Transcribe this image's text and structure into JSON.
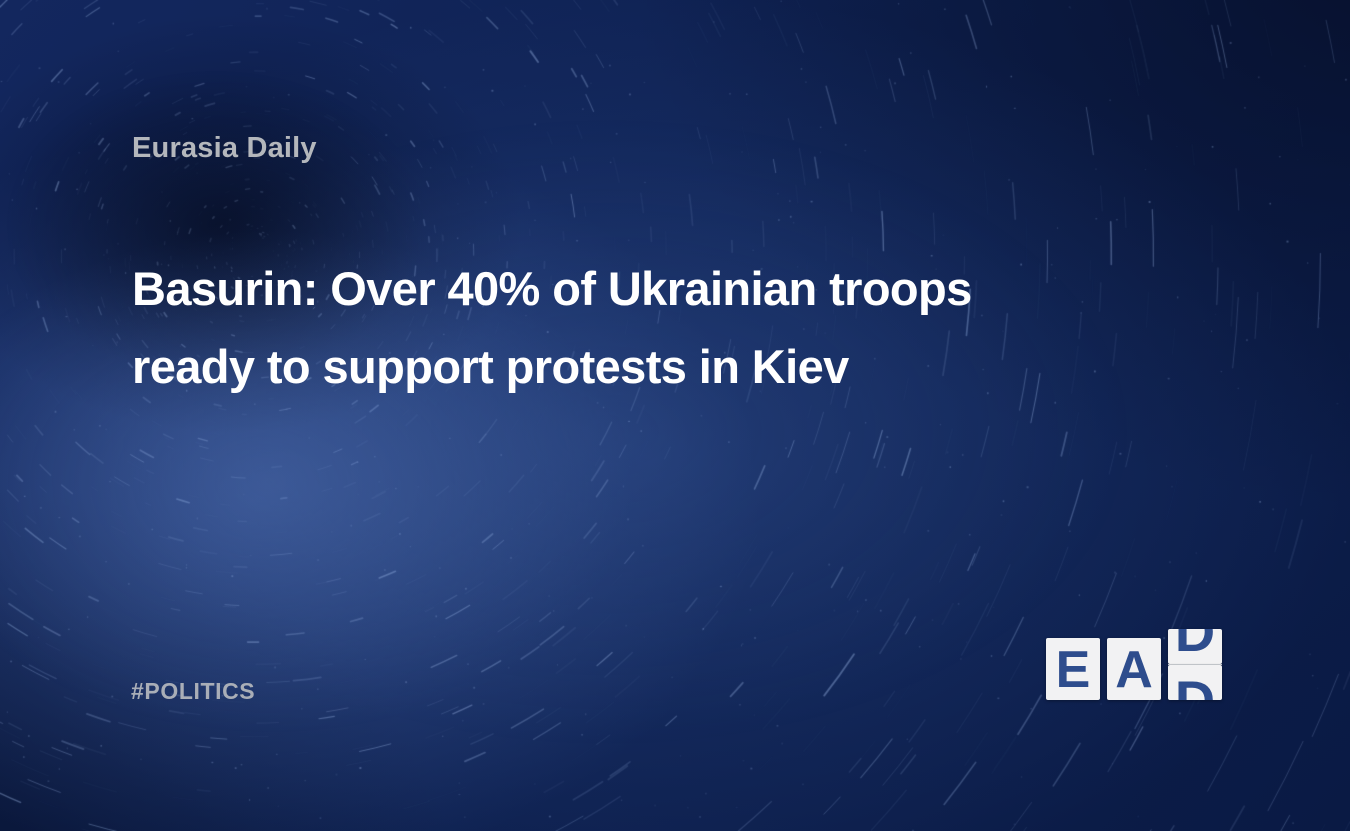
{
  "card": {
    "brand": "Eurasia Daily",
    "headline": {
      "full": "Basurin: Over 40% of Ukrainian troops ready to support protests in Kiev",
      "lines": [
        "Basurin: Over 40% of Ukrainian troops",
        "ready to support protests in Kiev"
      ]
    },
    "category": {
      "hashtag": "#POLITICS"
    },
    "logo": {
      "letters": [
        "E",
        "A",
        "D"
      ]
    },
    "colors": {
      "background_navy": "#0d2051",
      "star_streak": "#a5c0ee",
      "headline_text": "#ffffff",
      "brand_text": "#b4b7bc",
      "hashtag_text": "#a9aeb7",
      "logo_tile": "#f2f2f3",
      "logo_letter_blue": "#2e4d8d"
    }
  }
}
